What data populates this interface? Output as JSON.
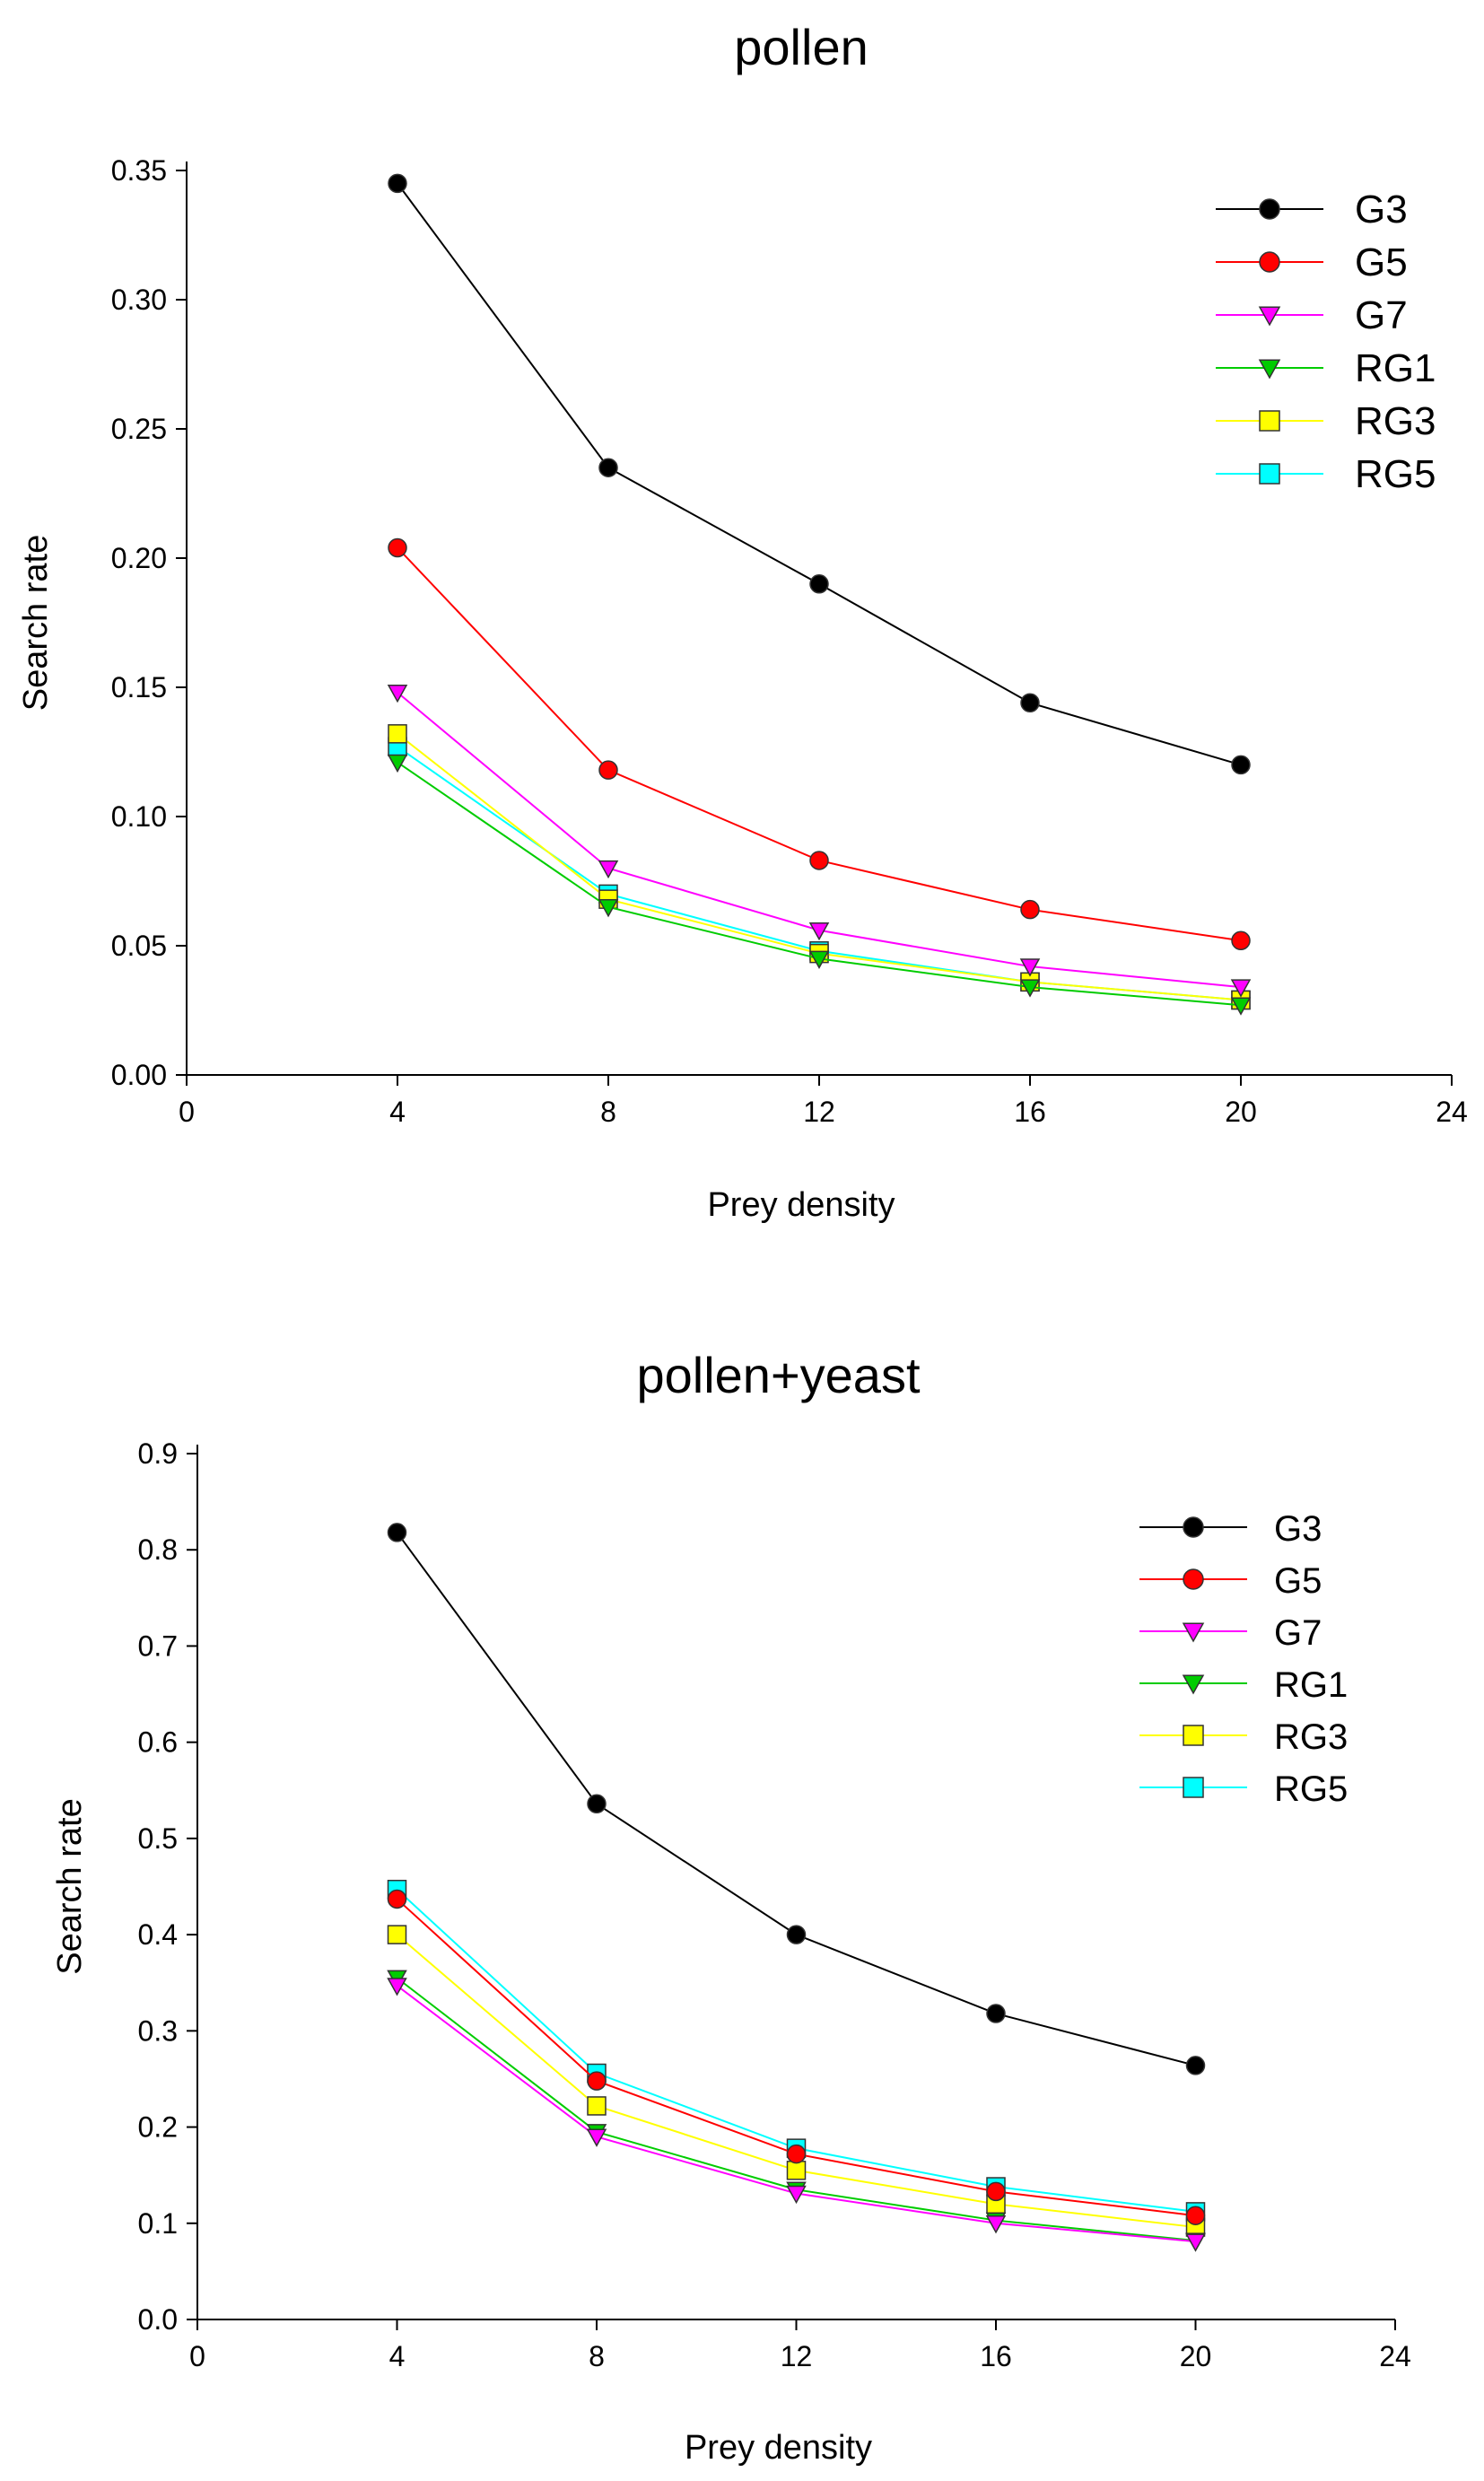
{
  "chart_data": [
    {
      "type": "line",
      "title": "pollen",
      "xlabel": "Prey density",
      "ylabel": "Search rate",
      "xlim": [
        0,
        24
      ],
      "ylim": [
        0,
        0.35
      ],
      "xticks": [
        "0",
        "4",
        "8",
        "12",
        "16",
        "20",
        "24"
      ],
      "yticks": [
        "0.00",
        "0.05",
        "0.10",
        "0.15",
        "0.20",
        "0.25",
        "0.30",
        "0.35"
      ],
      "legend_position": "top-right",
      "grid": false,
      "x": [
        4,
        8,
        12,
        16,
        20
      ],
      "series": [
        {
          "name": "G3",
          "color": "#000000",
          "marker": "circle",
          "values": [
            0.345,
            0.235,
            0.19,
            0.144,
            0.12
          ]
        },
        {
          "name": "G5",
          "color": "#ff0000",
          "marker": "circle",
          "values": [
            0.204,
            0.118,
            0.083,
            0.064,
            0.052
          ]
        },
        {
          "name": "G7",
          "color": "#ff00ff",
          "marker": "triangle",
          "values": [
            0.148,
            0.08,
            0.056,
            0.042,
            0.034
          ]
        },
        {
          "name": "RG1",
          "color": "#00cc00",
          "marker": "triangle",
          "values": [
            0.121,
            0.065,
            0.045,
            0.034,
            0.027
          ]
        },
        {
          "name": "RG3",
          "color": "#ffff00",
          "marker": "square",
          "values": [
            0.132,
            0.068,
            0.047,
            0.036,
            0.029
          ]
        },
        {
          "name": "RG5",
          "color": "#00ffff",
          "marker": "square",
          "values": [
            0.127,
            0.07,
            0.048,
            0.036,
            0.029
          ]
        }
      ]
    },
    {
      "type": "line",
      "title": "pollen+yeast",
      "xlabel": "Prey density",
      "ylabel": "Search rate",
      "xlim": [
        0,
        24
      ],
      "ylim": [
        0,
        0.9
      ],
      "xticks": [
        "0",
        "4",
        "8",
        "12",
        "16",
        "20",
        "24"
      ],
      "yticks": [
        "0.0",
        "0.1",
        "0.2",
        "0.3",
        "0.4",
        "0.5",
        "0.6",
        "0.7",
        "0.8",
        "0.9"
      ],
      "legend_position": "top-right",
      "grid": false,
      "x": [
        4,
        8,
        12,
        16,
        20
      ],
      "series": [
        {
          "name": "G3",
          "color": "#000000",
          "marker": "circle",
          "values": [
            0.818,
            0.536,
            0.4,
            0.318,
            0.264
          ]
        },
        {
          "name": "G5",
          "color": "#ff0000",
          "marker": "circle",
          "values": [
            0.437,
            0.248,
            0.172,
            0.133,
            0.108
          ]
        },
        {
          "name": "G7",
          "color": "#ff00ff",
          "marker": "triangle",
          "values": [
            0.347,
            0.19,
            0.131,
            0.1,
            0.081
          ]
        },
        {
          "name": "RG1",
          "color": "#00cc00",
          "marker": "triangle",
          "values": [
            0.355,
            0.195,
            0.135,
            0.103,
            0.082
          ]
        },
        {
          "name": "RG3",
          "color": "#ffff00",
          "marker": "square",
          "values": [
            0.4,
            0.222,
            0.155,
            0.12,
            0.096
          ]
        },
        {
          "name": "RG5",
          "color": "#00ffff",
          "marker": "square",
          "values": [
            0.447,
            0.256,
            0.178,
            0.138,
            0.112
          ]
        }
      ]
    }
  ]
}
